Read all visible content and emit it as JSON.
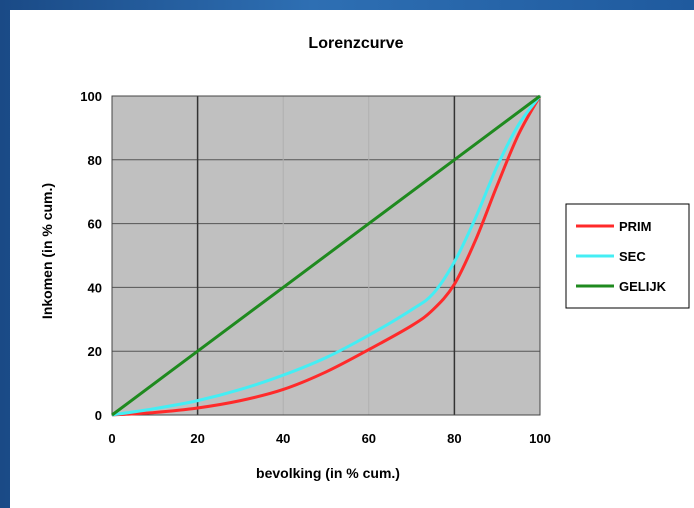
{
  "chart_data": {
    "type": "line",
    "title": "Lorenzcurve",
    "xlabel": "bevolking (in % cum.)",
    "ylabel": "Inkomen (in % cum.)",
    "xlim": [
      0,
      100
    ],
    "ylim": [
      0,
      100
    ],
    "xticks": [
      0,
      20,
      40,
      60,
      80,
      100
    ],
    "yticks": [
      0,
      20,
      40,
      60,
      80,
      100
    ],
    "grid": true,
    "legend_position": "right",
    "background": "#c0c0c0",
    "series": [
      {
        "name": "PRIM",
        "color": "#ff2a2a",
        "points": [
          [
            0,
            0
          ],
          [
            10,
            0.8
          ],
          [
            20,
            2.2
          ],
          [
            30,
            4.5
          ],
          [
            40,
            8
          ],
          [
            50,
            13.5
          ],
          [
            60,
            20.5
          ],
          [
            70,
            28
          ],
          [
            75,
            33
          ],
          [
            80,
            41
          ],
          [
            85,
            55
          ],
          [
            90,
            72
          ],
          [
            95,
            88
          ],
          [
            100,
            100
          ]
        ]
      },
      {
        "name": "SEC",
        "color": "#44eef4",
        "points": [
          [
            0,
            0
          ],
          [
            10,
            2
          ],
          [
            20,
            4.5
          ],
          [
            30,
            8
          ],
          [
            40,
            12.5
          ],
          [
            50,
            18
          ],
          [
            60,
            25
          ],
          [
            70,
            33
          ],
          [
            75,
            38
          ],
          [
            80,
            48
          ],
          [
            85,
            62
          ],
          [
            90,
            78
          ],
          [
            95,
            91
          ],
          [
            100,
            100
          ]
        ]
      },
      {
        "name": "GELIJK",
        "color": "#1f8a1f",
        "points": [
          [
            0,
            0
          ],
          [
            20,
            20
          ],
          [
            40,
            40
          ],
          [
            60,
            60
          ],
          [
            80,
            80
          ],
          [
            100,
            100
          ]
        ]
      }
    ]
  }
}
